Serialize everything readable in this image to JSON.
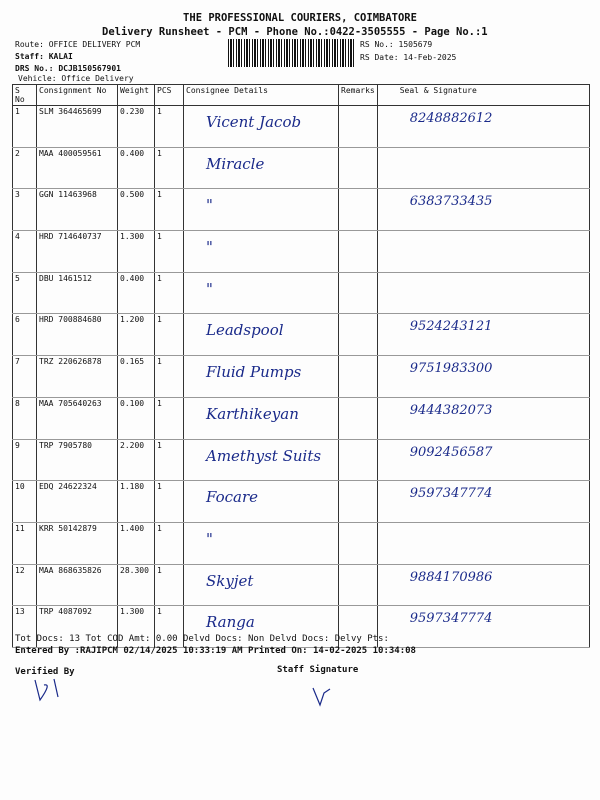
{
  "header": {
    "company": "THE PROFESSIONAL COURIERS, COIMBATORE",
    "subtitle": "Delivery Runsheet - PCM - Phone No.:0422-3505555 - Page No.:1",
    "route": "Route: OFFICE DELIVERY PCM",
    "staff": "Staff: KALAI",
    "drs": "DRS No.: DCJB150567901",
    "vehicle": "Vehicle: Office Delivery",
    "rs_no": "RS No.: 1505679",
    "rs_date": "RS Date: 14-Feb-2025"
  },
  "table": {
    "columns": [
      "S No",
      "Consignment No",
      "Weight",
      "PCS",
      "Consignee Details",
      "Remarks",
      "Seal & Signature"
    ],
    "rows": [
      {
        "sno": "1",
        "cn": "SLM 364465699",
        "wt": "0.230",
        "pcs": "1",
        "consignee": "Vicent Jacob",
        "sig": "8248882612"
      },
      {
        "sno": "2",
        "cn": "MAA 400059561",
        "wt": "0.400",
        "pcs": "1",
        "consignee": "Miracle",
        "sig": ""
      },
      {
        "sno": "3",
        "cn": "GGN 11463968",
        "wt": "0.500",
        "pcs": "1",
        "consignee": "\"",
        "sig": "6383733435"
      },
      {
        "sno": "4",
        "cn": "HRD 714640737",
        "wt": "1.300",
        "pcs": "1",
        "consignee": "\"",
        "sig": ""
      },
      {
        "sno": "5",
        "cn": "DBU 1461512",
        "wt": "0.400",
        "pcs": "1",
        "consignee": "\"",
        "sig": ""
      },
      {
        "sno": "6",
        "cn": "HRD 700884680",
        "wt": "1.200",
        "pcs": "1",
        "consignee": "Leadspool",
        "sig": "9524243121"
      },
      {
        "sno": "7",
        "cn": "TRZ 220626878",
        "wt": "0.165",
        "pcs": "1",
        "consignee": "Fluid Pumps",
        "sig": "9751983300"
      },
      {
        "sno": "8",
        "cn": "MAA 705640263",
        "wt": "0.100",
        "pcs": "1",
        "consignee": "Karthikeyan",
        "sig": "9444382073"
      },
      {
        "sno": "9",
        "cn": "TRP 7905780",
        "wt": "2.200",
        "pcs": "1",
        "consignee": "Amethyst Suits",
        "sig": "9092456587"
      },
      {
        "sno": "10",
        "cn": "EDQ 24622324",
        "wt": "1.180",
        "pcs": "1",
        "consignee": "Focare",
        "sig": "9597347774"
      },
      {
        "sno": "11",
        "cn": "KRR 50142879",
        "wt": "1.400",
        "pcs": "1",
        "consignee": "\"",
        "sig": ""
      },
      {
        "sno": "12",
        "cn": "MAA 868635826",
        "wt": "28.300",
        "pcs": "1",
        "consignee": "Skyjet",
        "sig": "9884170986"
      },
      {
        "sno": "13",
        "cn": "TRP 4087092",
        "wt": "1.300",
        "pcs": "1",
        "consignee": "Ranga",
        "sig": "9597347774"
      }
    ]
  },
  "footer": {
    "totals": "Tot Docs:  13    Tot COD Amt:     0.00    Delvd Docs:      Non Delvd Docs:      Delvy Pts:",
    "entered": "Entered By :RAJIPCM 02/14/2025 10:33:19 AM     Printed On: 14-02-2025 10:34:08",
    "verified": "Verified By",
    "staff_sig": "Staff Signature"
  }
}
